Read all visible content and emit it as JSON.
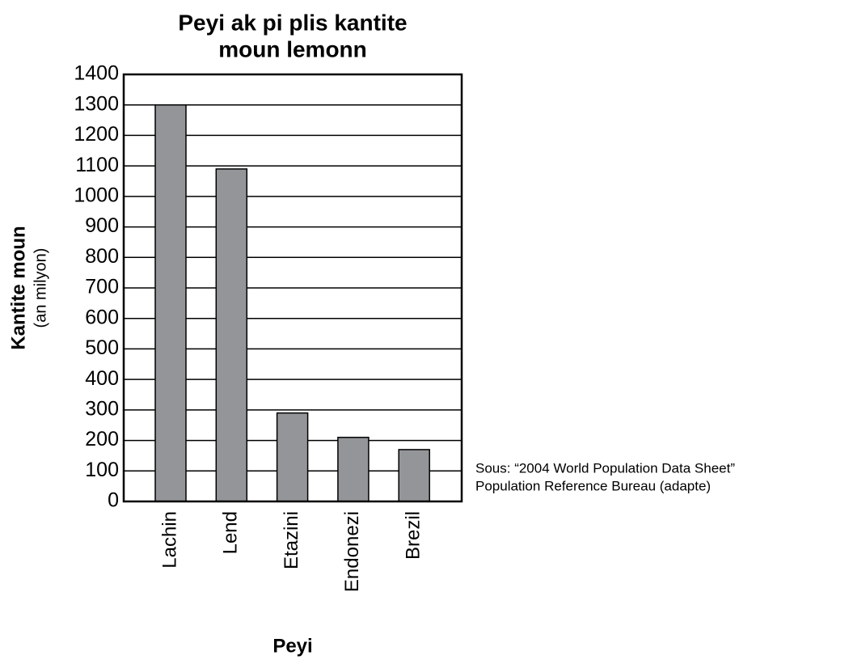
{
  "chart_data": {
    "type": "bar",
    "title": [
      "Peyi ak pi plis kantite",
      "moun lemonn"
    ],
    "y_label": "Kantite moun",
    "y_label_unit": "(an milyon)",
    "x_label": "Peyi",
    "source": [
      "Sous:  “2004 World Population Data Sheet”",
      "Population Reference Bureau (adapte)"
    ],
    "categories": [
      "Lachin",
      "Lend",
      "Etazini",
      "Endonezi",
      "Brezil"
    ],
    "values": [
      1300,
      1090,
      290,
      210,
      170
    ],
    "color": "#939598",
    "ylim": [
      0,
      1400
    ],
    "yticks": [
      0,
      100,
      200,
      300,
      400,
      500,
      600,
      700,
      800,
      900,
      1000,
      1100,
      1200,
      1300,
      1400
    ],
    "grid": true
  }
}
